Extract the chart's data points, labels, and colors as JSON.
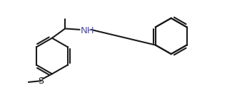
{
  "bg_color": "#ffffff",
  "line_color": "#1a1a1a",
  "line_width": 1.5,
  "nh_color": "#5050a0",
  "figsize": [
    3.53,
    1.51
  ],
  "dpi": 100,
  "xlim": [
    0,
    10
  ],
  "ylim": [
    0,
    4.3
  ]
}
